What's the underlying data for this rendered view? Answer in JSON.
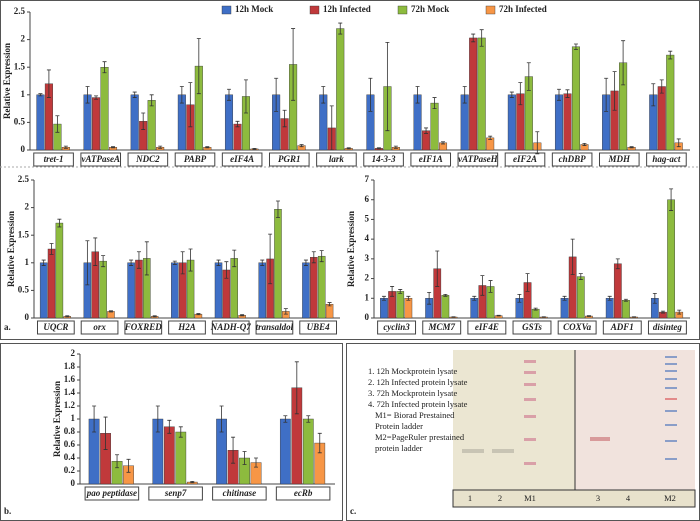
{
  "panel_labels": [
    "a.",
    "b.",
    "c."
  ],
  "chart_data": [
    {
      "type": "bar",
      "y_label": "Relative Expression",
      "legend": "top",
      "error_bars": true,
      "categories": [
        "tret-1",
        "vATPaseA",
        "NDC2",
        "PABP",
        "eIF4A",
        "PGR1",
        "lark",
        "14-3-3",
        "eIF1A",
        "vATPaseH",
        "eIF2A",
        "chDBP",
        "MDH",
        "hag-act"
      ],
      "ylim": [
        0,
        2.5
      ],
      "yticks": [
        0,
        0.5,
        1,
        1.5,
        2,
        2.5
      ],
      "series": [
        {
          "name": "12h Mock",
          "color": "#3f6fc6",
          "values": [
            1,
            1,
            1,
            1,
            1,
            1,
            1,
            1,
            1,
            1,
            1,
            1,
            1,
            1
          ],
          "errors": [
            0.02,
            0.15,
            0.05,
            0.15,
            0.1,
            0.3,
            0.15,
            0.3,
            0.15,
            0.15,
            0.05,
            0.1,
            0.3,
            0.2
          ]
        },
        {
          "name": "12h Infected",
          "color": "#c0393b",
          "values": [
            1.2,
            0.95,
            0.52,
            0.82,
            0.47,
            0.57,
            0.4,
            0.03,
            0.35,
            2.03,
            1.02,
            1.02,
            1.07,
            1.15
          ],
          "errors": [
            0.25,
            0.03,
            0.15,
            0.4,
            0.05,
            0.15,
            0.4,
            0.01,
            0.05,
            0.07,
            0.2,
            0.07,
            0.35,
            0.12
          ]
        },
        {
          "name": "72h Mock",
          "color": "#8dbb3e",
          "values": [
            0.47,
            1.5,
            0.9,
            1.52,
            0.97,
            1.55,
            2.2,
            1.15,
            0.85,
            2.03,
            1.33,
            1.87,
            1.58,
            1.72
          ],
          "errors": [
            0.15,
            0.1,
            0.1,
            0.5,
            0.3,
            0.65,
            0.1,
            0.8,
            0.1,
            0.15,
            0.25,
            0.05,
            0.4,
            0.07
          ]
        },
        {
          "name": "72h Infected",
          "color": "#f79646",
          "values": [
            0.05,
            0.05,
            0.05,
            0.05,
            0.02,
            0.08,
            0.03,
            0.05,
            0.13,
            0.22,
            0.13,
            0.1,
            0.05,
            0.13
          ],
          "errors": [
            0.02,
            0.01,
            0.02,
            0.01,
            0.01,
            0.02,
            0.01,
            0.02,
            0.02,
            0.03,
            0.2,
            0.02,
            0.01,
            0.07
          ]
        }
      ]
    },
    {
      "type": "bar",
      "y_label": "Relative Expression",
      "error_bars": true,
      "categories": [
        "UQCR",
        "orx",
        "FOXRED",
        "H2A",
        "NADH-Q7",
        "transaldol",
        "UBE4"
      ],
      "ylim": [
        0,
        2.5
      ],
      "yticks": [
        0,
        0.5,
        1,
        1.5,
        2,
        2.5
      ],
      "series": [
        {
          "color": "#3f6fc6",
          "values": [
            1,
            1,
            1,
            1,
            1,
            1,
            1
          ],
          "errors": [
            0.05,
            0.4,
            0.05,
            0.03,
            0.05,
            0.05,
            0.05
          ]
        },
        {
          "color": "#c0393b",
          "values": [
            1.25,
            1.2,
            1.05,
            1.0,
            0.87,
            1.07,
            1.1
          ],
          "errors": [
            0.1,
            0.25,
            0.15,
            0.2,
            0.15,
            0.45,
            0.1
          ]
        },
        {
          "color": "#8dbb3e",
          "values": [
            1.72,
            1.03,
            1.08,
            1.05,
            1.08,
            1.97,
            1.12
          ],
          "errors": [
            0.07,
            0.1,
            0.3,
            0.2,
            0.15,
            0.15,
            0.1
          ]
        },
        {
          "color": "#f79646",
          "values": [
            0.03,
            0.12,
            0.03,
            0.07,
            0.05,
            0.12,
            0.25
          ],
          "errors": [
            0.01,
            0.01,
            0.01,
            0.01,
            0.01,
            0.05,
            0.03
          ]
        }
      ]
    },
    {
      "type": "bar",
      "y_label": "Relative Expression",
      "error_bars": true,
      "categories": [
        "cyclin3",
        "MCM7",
        "eIF4E",
        "GSTs",
        "COXVa",
        "ADF1",
        "disinteg"
      ],
      "ylim": [
        0,
        7
      ],
      "yticks": [
        0,
        1,
        2,
        3,
        4,
        5,
        6,
        7
      ],
      "series": [
        {
          "color": "#3f6fc6",
          "values": [
            1,
            1,
            1,
            1,
            1,
            1,
            1
          ],
          "errors": [
            0.1,
            0.3,
            0.1,
            0.2,
            0.1,
            0.1,
            0.25
          ]
        },
        {
          "color": "#c0393b",
          "values": [
            1.35,
            2.5,
            1.65,
            1.8,
            3.1,
            2.75,
            0.3
          ],
          "errors": [
            0.25,
            0.9,
            0.5,
            0.45,
            0.9,
            0.25,
            0.05
          ]
        },
        {
          "color": "#8dbb3e",
          "values": [
            1.35,
            1.15,
            1.6,
            0.45,
            2.1,
            0.9,
            6.0
          ],
          "errors": [
            0.1,
            0.05,
            0.3,
            0.05,
            0.15,
            0.05,
            0.55
          ]
        },
        {
          "color": "#f79646",
          "values": [
            1.0,
            0.05,
            0.12,
            0.05,
            0.1,
            0.05,
            0.3
          ],
          "errors": [
            0.1,
            0.01,
            0.02,
            0.01,
            0.02,
            0.01,
            0.1
          ]
        }
      ]
    },
    {
      "type": "bar",
      "y_label": "Relative Expression",
      "error_bars": true,
      "categories": [
        "pao peptidase",
        "senp7",
        "chitinase",
        "ecRb"
      ],
      "ylim": [
        0,
        2
      ],
      "yticks": [
        0,
        0.2,
        0.4,
        0.6,
        0.8,
        1,
        1.2,
        1.4,
        1.6,
        1.8,
        2
      ],
      "series": [
        {
          "color": "#3f6fc6",
          "values": [
            1,
            1,
            1,
            1
          ],
          "errors": [
            0.2,
            0.2,
            0.2,
            0.05
          ]
        },
        {
          "color": "#c0393b",
          "values": [
            0.78,
            0.88,
            0.52,
            1.48
          ],
          "errors": [
            0.25,
            0.1,
            0.2,
            0.4
          ]
        },
        {
          "color": "#8dbb3e",
          "values": [
            0.35,
            0.8,
            0.4,
            1.0
          ],
          "errors": [
            0.1,
            0.08,
            0.1,
            0.05
          ]
        },
        {
          "color": "#f79646",
          "values": [
            0.28,
            0.03,
            0.33,
            0.63
          ],
          "errors": [
            0.1,
            0.01,
            0.07,
            0.15
          ]
        }
      ]
    }
  ],
  "gel": {
    "legend": [
      "1.   12h Mockprotein lysate",
      "2.   12h Infected protein lysate",
      "3.   72h  Mockprotein lysate",
      "4.   72h Infected protein lysate",
      "M1= Biorad Prestained",
      "Protein ladder",
      "M2=PageRuler prestained",
      "protein ladder"
    ],
    "lanes": [
      "1",
      "2",
      "M1",
      "3",
      "4",
      "M2"
    ]
  }
}
